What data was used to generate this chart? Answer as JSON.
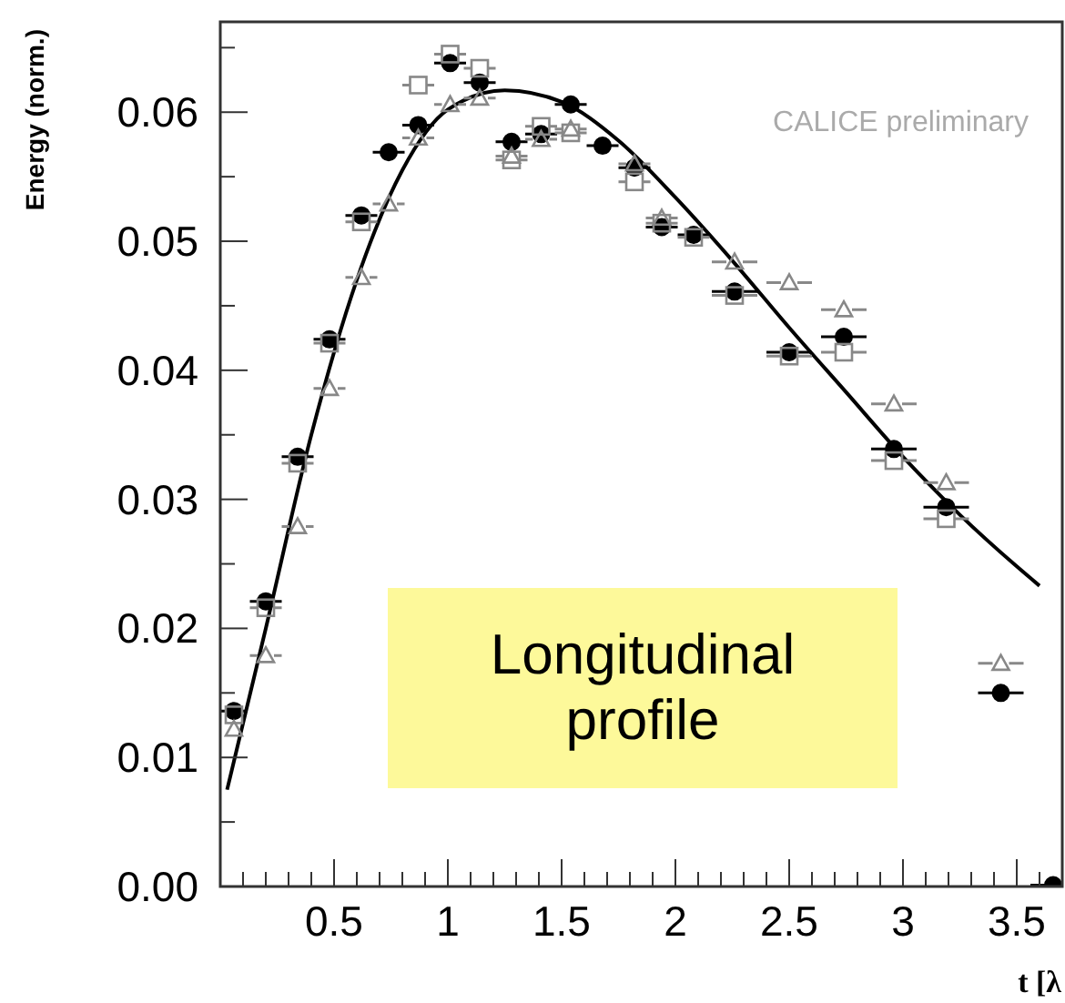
{
  "chart_data": {
    "type": "scatter",
    "xlabel": "t [λ",
    "ylabel": "Energy (norm.)",
    "xlim": [
      0,
      3.7
    ],
    "ylim": [
      0,
      0.067
    ],
    "xticks": [
      0.5,
      1,
      1.5,
      2,
      2.5,
      3,
      3.5,
      {
        "value": 0.1,
        "label": null
      },
      {
        "value": 0.2,
        "label": null
      },
      {
        "value": 0.3,
        "label": null
      },
      {
        "value": 0.4,
        "label": null
      },
      {
        "value": 0.6,
        "label": null
      },
      {
        "value": 0.7,
        "label": null
      },
      {
        "value": 0.8,
        "label": null
      },
      {
        "value": 0.9,
        "label": null
      },
      {
        "value": 1.1,
        "label": null
      },
      {
        "value": 1.2,
        "label": null
      },
      {
        "value": 1.3,
        "label": null
      },
      {
        "value": 1.4,
        "label": null
      },
      {
        "value": 1.6,
        "label": null
      },
      {
        "value": 1.7,
        "label": null
      },
      {
        "value": 1.8,
        "label": null
      },
      {
        "value": 1.9,
        "label": null
      },
      {
        "value": 2.1,
        "label": null
      },
      {
        "value": 2.2,
        "label": null
      },
      {
        "value": 2.3,
        "label": null
      },
      {
        "value": 2.4,
        "label": null
      },
      {
        "value": 2.6,
        "label": null
      },
      {
        "value": 2.7,
        "label": null
      },
      {
        "value": 2.8,
        "label": null
      },
      {
        "value": 2.9,
        "label": null
      },
      {
        "value": 3.1,
        "label": null
      },
      {
        "value": 3.2,
        "label": null
      },
      {
        "value": 3.3,
        "label": null
      },
      {
        "value": 3.4,
        "label": null
      },
      {
        "value": 3.6,
        "label": null
      }
    ],
    "yticks": [
      {
        "value": 0,
        "label": "0.00"
      },
      {
        "value": 0.01,
        "label": "0.01"
      },
      {
        "value": 0.02,
        "label": "0.02"
      },
      {
        "value": 0.03,
        "label": "0.03"
      },
      {
        "value": 0.04,
        "label": "0.04"
      },
      {
        "value": 0.05,
        "label": "0.05"
      },
      {
        "value": 0.06,
        "label": "0.06"
      },
      {
        "value": 0.005,
        "label": null
      },
      {
        "value": 0.015,
        "label": null
      },
      {
        "value": 0.025,
        "label": null
      },
      {
        "value": 0.035,
        "label": null
      },
      {
        "value": 0.045,
        "label": null
      },
      {
        "value": 0.055,
        "label": null
      },
      {
        "value": 0.065,
        "label": null
      }
    ],
    "x": [
      0.06,
      0.2,
      0.34,
      0.48,
      0.62,
      0.74,
      0.87,
      1.01,
      1.14,
      1.28,
      1.41,
      1.54,
      1.68,
      1.82,
      1.94,
      2.08,
      2.26,
      2.5,
      2.74,
      2.96,
      3.19,
      3.43,
      3.66
    ],
    "series": [
      {
        "color": "#888888",
        "marker": "triangle",
        "values": [
          0.0122,
          0.0179,
          0.0279,
          0.0386,
          0.0472,
          0.0529,
          0.058,
          0.0606,
          0.0611,
          0.0566,
          0.0579,
          0.0587,
          null,
          0.056,
          0.0518,
          null,
          0.0484,
          0.0468,
          0.0447,
          0.0374,
          0.0313,
          0.0173,
          null
        ],
        "xerrors": [
          null,
          0.07,
          0.07,
          0.07,
          0.07,
          0.07,
          0.07,
          0.07,
          0.07,
          0.07,
          0.07,
          0.07,
          null,
          0.07,
          0.07,
          null,
          0.1,
          0.1,
          0.1,
          0.1,
          0.1,
          0.1,
          null
        ]
      },
      {
        "color": "#888888",
        "marker": "square",
        "values": [
          0.0133,
          0.0216,
          0.0328,
          0.0421,
          0.0515,
          null,
          0.0621,
          0.0645,
          0.0634,
          0.0563,
          0.0589,
          0.0584,
          null,
          0.0546,
          0.0514,
          0.0503,
          0.0458,
          0.0411,
          0.0414,
          0.033,
          0.0285,
          null,
          null
        ],
        "xerrors": [
          null,
          0.07,
          0.07,
          0.07,
          0.07,
          null,
          0.07,
          0.07,
          0.07,
          0.07,
          0.07,
          0.07,
          null,
          0.07,
          0.07,
          0.07,
          0.1,
          0.1,
          0.1,
          0.1,
          0.1,
          null,
          null
        ]
      },
      {
        "color": "#000000",
        "marker": "circle",
        "values": [
          0.0136,
          0.0221,
          0.0333,
          0.0424,
          0.052,
          0.0569,
          0.059,
          0.0638,
          0.0623,
          0.0577,
          0.0583,
          0.0606,
          0.0574,
          0.0557,
          0.0511,
          0.0505,
          0.0461,
          0.0414,
          0.0426,
          0.0339,
          0.0294,
          0.015,
          0.0001
        ],
        "xerrors": [
          0.06,
          0.07,
          0.07,
          0.07,
          0.07,
          0.07,
          0.07,
          0.07,
          0.07,
          0.07,
          0.07,
          0.07,
          0.07,
          0.07,
          0.07,
          0.07,
          0.1,
          0.1,
          0.1,
          0.1,
          0.1,
          0.1,
          0.1
        ]
      },
      {
        "type": "line",
        "color": "#000000",
        "marker": "none",
        "x": [
          0.03,
          0.2,
          0.4,
          0.6,
          0.8,
          1.0,
          1.25,
          1.5,
          1.75,
          2.0,
          2.25,
          2.5,
          2.75,
          3.0,
          3.25,
          3.5,
          3.6
        ],
        "values": [
          0.0075,
          0.02,
          0.035,
          0.047,
          0.0555,
          0.0602,
          0.0617,
          0.0608,
          0.0578,
          0.0534,
          0.0485,
          0.0433,
          0.0383,
          0.0333,
          0.0288,
          0.0248,
          0.0233
        ]
      }
    ],
    "annotations": [
      "CALICE preliminary",
      "Longitudinal\nprofile"
    ]
  }
}
